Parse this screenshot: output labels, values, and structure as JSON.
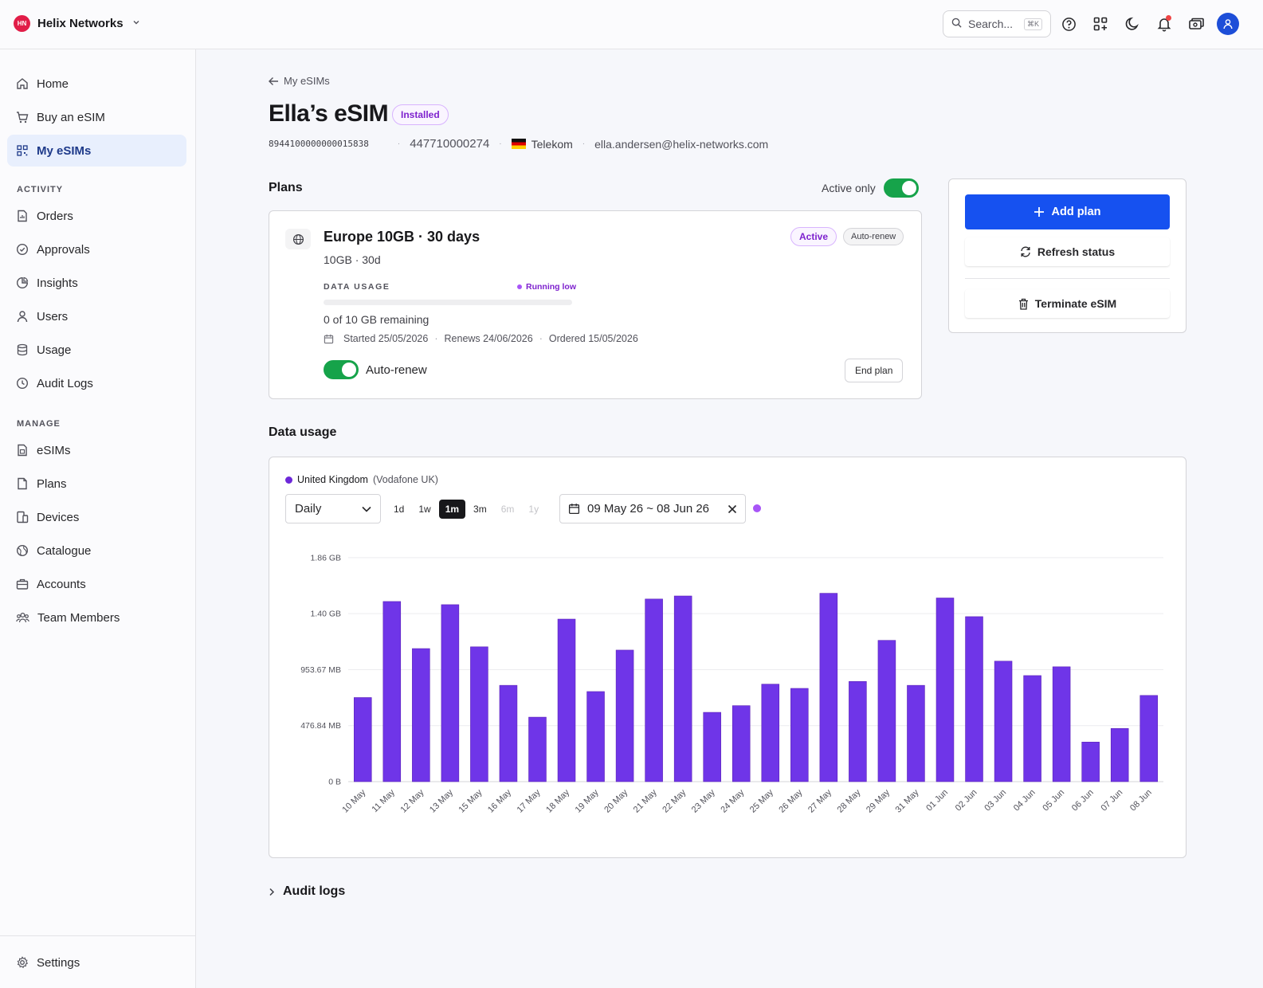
{
  "org": {
    "initials": "HN",
    "name": "Helix Networks"
  },
  "search": {
    "placeholder": "Search...",
    "shortcut": "⌘K"
  },
  "sidebar": {
    "top": [
      {
        "label": "Home",
        "icon": "home-icon"
      },
      {
        "label": "Buy an eSIM",
        "icon": "cart-icon"
      },
      {
        "label": "My eSIMs",
        "icon": "qr-icon",
        "active": true
      }
    ],
    "activity_label": "ACTIVITY",
    "activity": [
      {
        "label": "Orders",
        "icon": "orders-icon"
      },
      {
        "label": "Approvals",
        "icon": "check-circle-icon"
      },
      {
        "label": "Insights",
        "icon": "pie-icon"
      },
      {
        "label": "Users",
        "icon": "user-icon"
      },
      {
        "label": "Usage",
        "icon": "database-icon"
      },
      {
        "label": "Audit Logs",
        "icon": "clock-icon"
      }
    ],
    "manage_label": "MANAGE",
    "manage": [
      {
        "label": "eSIMs",
        "icon": "esim-icon"
      },
      {
        "label": "Plans",
        "icon": "file-icon"
      },
      {
        "label": "Devices",
        "icon": "devices-icon"
      },
      {
        "label": "Catalogue",
        "icon": "globe-icon"
      },
      {
        "label": "Accounts",
        "icon": "briefcase-icon"
      },
      {
        "label": "Team Members",
        "icon": "team-icon"
      }
    ],
    "settings": "Settings"
  },
  "breadcrumb": "My eSIMs",
  "esim": {
    "title": "Ella’s eSIM",
    "status": "Installed",
    "iccid": "8944100000000015838",
    "msisdn": "447710000274",
    "carrier": "Telekom",
    "email": "ella.andersen@helix-networks.com"
  },
  "plans": {
    "title": "Plans",
    "active_only_label": "Active only",
    "active_only": true,
    "plan": {
      "name": "Europe 10GB · 30 days",
      "summary": "10GB · 30d",
      "status": "Active",
      "renew_badge": "Auto-renew",
      "usage_label": "DATA USAGE",
      "usage_status": "Running low",
      "used_fraction": 0,
      "remaining": "0 of 10 GB remaining",
      "started": "Started 25/05/2026",
      "renews": "Renews 24/06/2026",
      "ordered": "Ordered 15/05/2026",
      "auto_renew_label": "Auto-renew",
      "auto_renew": true,
      "end_label": "End plan"
    }
  },
  "actions": {
    "add_plan": "Add plan",
    "refresh": "Refresh status",
    "terminate": "Terminate eSIM"
  },
  "usage": {
    "title": "Data usage",
    "legend_country": "United Kingdom",
    "legend_network": "(Vodafone UK)",
    "interval": "Daily",
    "ranges": [
      "1d",
      "1w",
      "1m",
      "3m",
      "6m",
      "1y"
    ],
    "selected_range": "1m",
    "disabled_ranges": [
      "6m",
      "1y"
    ],
    "date_range": "09 May 26 ~ 08 Jun 26"
  },
  "chart_data": {
    "type": "bar",
    "title": "",
    "xlabel": "",
    "ylabel": "",
    "y_unit": "MB",
    "ylim": [
      0,
      1906.7
    ],
    "y_ticks": [
      {
        "label": "0 B",
        "value": 0
      },
      {
        "label": "476.84 MB",
        "value": 476.84
      },
      {
        "label": "953.67 MB",
        "value": 953.67
      },
      {
        "label": "1.40 GB",
        "value": 1430.5
      },
      {
        "label": "1.86 GB",
        "value": 1907.3
      }
    ],
    "grid": true,
    "color": "#6f35e8",
    "categories": [
      "10 May",
      "11 May",
      "12 May",
      "13 May",
      "15 May",
      "16 May",
      "17 May",
      "18 May",
      "19 May",
      "20 May",
      "21 May",
      "22 May",
      "23 May",
      "24 May",
      "25 May",
      "26 May",
      "27 May",
      "28 May",
      "29 May",
      "31 May",
      "01 Jun",
      "02 Jun",
      "03 Jun",
      "04 Jun",
      "05 Jun",
      "06 Jun",
      "07 Jun",
      "08 Jun"
    ],
    "values": [
      716,
      1534,
      1133,
      1507,
      1148,
      820,
      549,
      1384,
      767,
      1120,
      1555,
      1581,
      590,
      647,
      830,
      794,
      1604,
      853,
      1203,
      820,
      1564,
      1405,
      1026,
      903,
      978,
      337,
      453,
      734
    ]
  },
  "audit_logs": "Audit logs"
}
